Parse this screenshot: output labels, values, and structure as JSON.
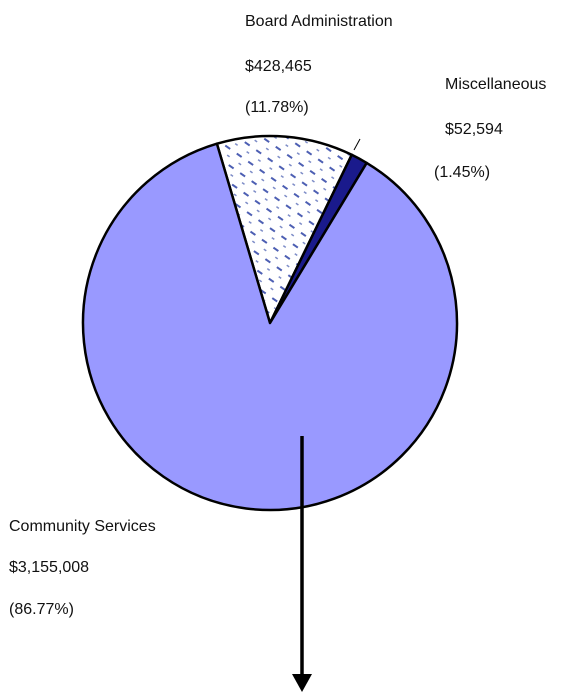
{
  "chart_data": {
    "type": "pie",
    "title": "",
    "slices": [
      {
        "label": "Community Services",
        "value": 3155008,
        "value_text": "$3,155,008",
        "percent_text": "(86.77%)",
        "color": "#9999ff",
        "fill": "solid"
      },
      {
        "label": "Board Administration",
        "value": 428465,
        "value_text": "$428,465",
        "percent_text": "(11.78%)",
        "color": "#ffffff",
        "fill": "dotted-blue"
      },
      {
        "label": "Miscellaneous",
        "value": 52594,
        "value_text": "$52,594",
        "percent_text": "(1.45%)",
        "color": "#1a1a8c",
        "fill": "solid"
      }
    ],
    "colors": {
      "outline": "#000000",
      "pattern_dot": "#4d5fb3",
      "arrow": "#000000"
    },
    "annotation": {
      "type": "arrow",
      "from_slice": "Community Services",
      "direction": "down"
    }
  }
}
